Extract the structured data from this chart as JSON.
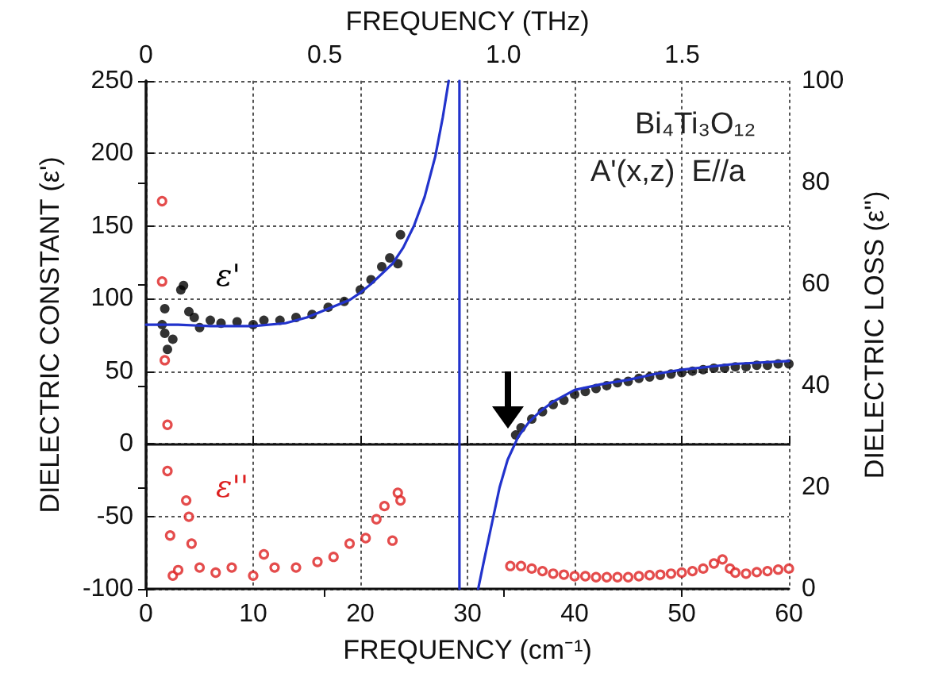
{
  "chart_data": {
    "type": "scatter",
    "xlabel": "FREQUENCY (cm⁻¹)",
    "x2label": "FREQUENCY (THz)",
    "ylabel": "DIELECTRIC CONSTANT (ε')",
    "y2label": "DIELECTRIC LOSS (ε'')",
    "xlim": [
      0,
      60
    ],
    "xticks": [
      0,
      10,
      20,
      30,
      40,
      50,
      60
    ],
    "x2lim": [
      0,
      1.7987
    ],
    "x2ticks": [
      0,
      0.5,
      {
        "value": 1,
        "label": "1.0"
      },
      1.5
    ],
    "ylim": [
      -100,
      250
    ],
    "yticks": [
      -100,
      -50,
      0,
      50,
      100,
      150,
      200,
      250
    ],
    "y2lim": [
      0,
      100
    ],
    "y2ticks": [
      0,
      20,
      40,
      60,
      80,
      100
    ],
    "grid": true,
    "annotations": [
      "Bi₄Ti₃O₁₂",
      "A'(x,z)  E//a"
    ],
    "series": [
      {
        "name": "ε'",
        "color": "#000000",
        "marker": "circle",
        "x": [
          1.5,
          1.75,
          1.75,
          2,
          2.5,
          3.25,
          3.5,
          4,
          4.5,
          5,
          6,
          7,
          8.5,
          10,
          11,
          12.5,
          14,
          15.5,
          17,
          18.5,
          20,
          21,
          22,
          22.75,
          23.5,
          23.75,
          34.5,
          35,
          36,
          37,
          38,
          39,
          40,
          41,
          42,
          43,
          44,
          45,
          46,
          47,
          48,
          49,
          50,
          51,
          52,
          53,
          54,
          55,
          56,
          57,
          58,
          59,
          60
        ],
        "values": [
          82,
          93,
          76,
          65,
          72,
          106,
          109,
          91,
          87,
          80,
          85,
          83,
          84,
          82,
          85,
          85,
          87,
          89,
          94,
          98,
          106,
          113,
          122,
          128,
          124,
          144,
          6,
          11,
          17,
          22,
          27,
          30,
          34,
          36,
          38,
          40,
          42,
          43,
          45,
          46,
          47,
          48,
          49,
          50,
          51,
          52,
          52,
          53,
          53,
          54,
          54,
          55,
          55
        ]
      },
      {
        "name": "ε''",
        "color": "#dd1f1f",
        "marker": "circle",
        "axis": "y2",
        "x": [
          1.5,
          1.5,
          1.75,
          2,
          2,
          2.25,
          2.5,
          3,
          3.75,
          4,
          4.25,
          5,
          6.5,
          8,
          10,
          11,
          12,
          14,
          16,
          17.5,
          19,
          20.5,
          21.5,
          22.25,
          23,
          23.5,
          23.75,
          34,
          35,
          36,
          37,
          38,
          39,
          40,
          41,
          42,
          43,
          44,
          45,
          46,
          47,
          48,
          49,
          50,
          51,
          52,
          53,
          53.8,
          54.5,
          55,
          56,
          57,
          58,
          59,
          60
        ],
        "values": [
          76.3,
          60.5,
          45,
          32.3,
          23.2,
          10.5,
          2.6,
          3.7,
          17.4,
          14.2,
          8.9,
          4.2,
          3.2,
          4.2,
          2.6,
          6.8,
          4.2,
          4.2,
          5.3,
          6.3,
          8.9,
          10,
          13.7,
          16.3,
          9.5,
          18.9,
          17.4,
          4.5,
          4.5,
          4,
          3.5,
          3,
          2.8,
          2.5,
          2.5,
          2.3,
          2.3,
          2.3,
          2.3,
          2.5,
          2.7,
          2.8,
          3,
          3.2,
          3.5,
          4,
          5,
          5.8,
          4,
          3.2,
          3,
          3.3,
          3.5,
          3.8,
          4
        ]
      },
      {
        "type": "line",
        "color": "#2233cc",
        "marker": "none",
        "line_style": "solid",
        "x": [
          0,
          3,
          6,
          10,
          13,
          15,
          17,
          19,
          20,
          21,
          22,
          23,
          24,
          25,
          26,
          27,
          27.7,
          28.25
        ],
        "values": [
          82,
          82,
          81,
          81,
          83,
          87,
          93,
          99,
          104,
          110,
          117,
          124,
          135,
          150,
          170,
          198,
          225,
          250
        ]
      },
      {
        "type": "line",
        "color": "#2233cc",
        "marker": "none",
        "line_style": "solid",
        "x": [
          29.25,
          29.25
        ],
        "values": [
          -100,
          250
        ]
      },
      {
        "type": "line",
        "color": "#2233cc",
        "marker": "none",
        "line_style": "solid",
        "x": [
          31,
          31.5,
          32.25,
          33,
          33.75,
          34.75,
          35.75,
          36.75,
          38,
          40,
          42.5,
          45,
          47.5,
          50,
          55,
          60
        ],
        "values": [
          -100,
          -82,
          -56,
          -30,
          -11,
          5,
          15,
          22,
          29,
          37,
          41,
          44,
          48,
          51,
          55,
          57
        ]
      }
    ]
  }
}
